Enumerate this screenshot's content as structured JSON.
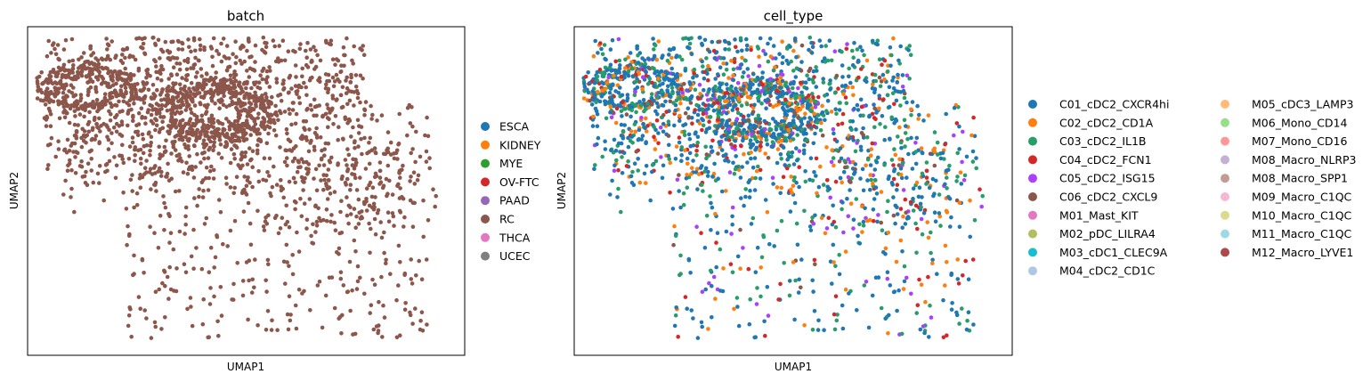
{
  "chart_data": [
    {
      "type": "scatter",
      "title": "batch",
      "xlabel": "UMAP1",
      "ylabel": "UMAP2",
      "grid": false,
      "ticks": false,
      "legend_placement": "right",
      "legend": [
        {
          "label": "ESCA",
          "color": "#1f77b4"
        },
        {
          "label": "KIDNEY",
          "color": "#ff7f0e"
        },
        {
          "label": "MYE",
          "color": "#2ca02c"
        },
        {
          "label": "OV-FTC",
          "color": "#d62728"
        },
        {
          "label": "PAAD",
          "color": "#9467bd"
        },
        {
          "label": "RC",
          "color": "#8c564b"
        },
        {
          "label": "THCA",
          "color": "#e377c2"
        },
        {
          "label": "UCEC",
          "color": "#7f7f7f"
        }
      ],
      "point_color": "#8c564b",
      "points_note_visible_category": "RC"
    },
    {
      "type": "scatter",
      "title": "cell_type",
      "xlabel": "UMAP1",
      "ylabel": "UMAP2",
      "grid": false,
      "ticks": false,
      "legend_placement": "right",
      "legend_columns": [
        [
          {
            "label": "C01_cDC2_CXCR4hi",
            "color": "#1f77b4"
          },
          {
            "label": "C02_cDC2_CD1A",
            "color": "#ff7f0e"
          },
          {
            "label": "C03_cDC2_IL1B",
            "color": "#279e68"
          },
          {
            "label": "C04_cDC2_FCN1",
            "color": "#d62728"
          },
          {
            "label": "C05_cDC2_ISG15",
            "color": "#aa40fc"
          },
          {
            "label": "C06_cDC2_CXCL9",
            "color": "#8c564b"
          },
          {
            "label": "M01_Mast_KIT",
            "color": "#e377c2"
          },
          {
            "label": "M02_pDC_LILRA4",
            "color": "#b5bd61"
          },
          {
            "label": "M03_cDC1_CLEC9A",
            "color": "#17becf"
          },
          {
            "label": "M04_cDC2_CD1C",
            "color": "#aec7e8"
          }
        ],
        [
          {
            "label": "M05_cDC3_LAMP3",
            "color": "#ffbb78"
          },
          {
            "label": "M06_Mono_CD14",
            "color": "#98df8a"
          },
          {
            "label": "M07_Mono_CD16",
            "color": "#ff9896"
          },
          {
            "label": "M08_Macro_NLRP3",
            "color": "#c5b0d5"
          },
          {
            "label": "M08_Macro_SPP1",
            "color": "#c49c94"
          },
          {
            "label": "M09_Macro_C1QC",
            "color": "#f7b6d2"
          },
          {
            "label": "M10_Macro_C1QC",
            "color": "#dbdb8d"
          },
          {
            "label": "M11_Macro_C1QC",
            "color": "#9edae5"
          },
          {
            "label": "M12_Macro_LYVE1",
            "color": "#ad494a"
          }
        ]
      ],
      "category_weights": {
        "C01_cDC2_CXCR4hi": 0.48,
        "C02_cDC2_CD1A": 0.14,
        "C03_cDC2_IL1B": 0.2,
        "C04_cDC2_FCN1": 0.08,
        "C05_cDC2_ISG15": 0.06,
        "C06_cDC2_CXCL9": 0.04
      }
    }
  ]
}
